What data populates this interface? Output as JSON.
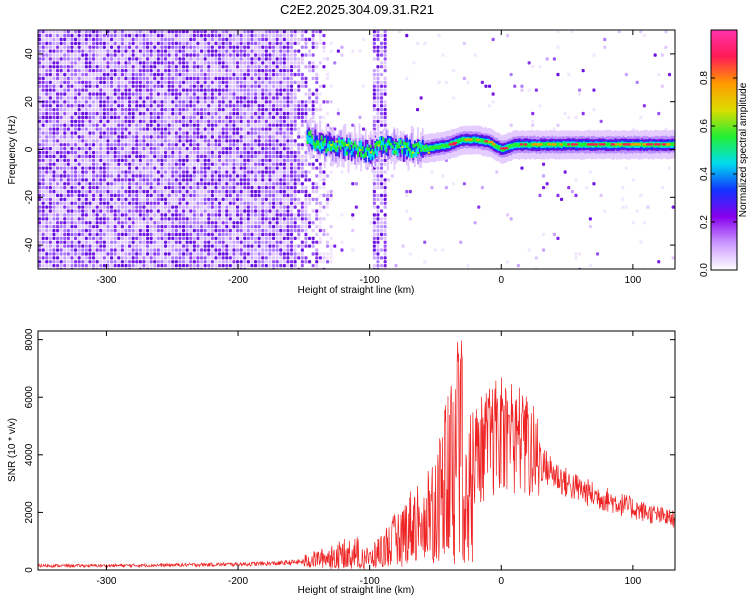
{
  "title": "C2E2.2025.304.09.31.R21",
  "chart_data": [
    {
      "type": "heatmap",
      "title": "",
      "xlabel": "Height of straight line (km)",
      "ylabel": "Frequency (Hz)",
      "xlim": [
        -352,
        132
      ],
      "ylim": [
        -50,
        50
      ],
      "xticks": [
        -300,
        -200,
        -100,
        0,
        100
      ],
      "yticks": [
        -40,
        -20,
        0,
        20,
        40
      ],
      "colorbar": {
        "label": "Normalized spectral amplitude",
        "range": [
          0,
          1
        ],
        "ticks": [
          0.0,
          0.2,
          0.4,
          0.6,
          0.8
        ],
        "tick_labels": [
          "0.0",
          "0.2",
          "0.4",
          "0.6",
          "0.8"
        ],
        "colors": [
          "#ffffff",
          "#cc99ff",
          "#8800ee",
          "#1133ff",
          "#00ddee",
          "#22ee33",
          "#dddd00",
          "#ff9900",
          "#ff1a55",
          "#ff33aa"
        ]
      },
      "noise_region_x": [
        -352,
        -130
      ],
      "gap_x": [
        -128,
        -100
      ],
      "second_noise_band_x": [
        -100,
        -87
      ],
      "ridge": {
        "x": [
          -148,
          -135,
          -120,
          -110,
          -100,
          -90,
          -80,
          -70,
          -60,
          -50,
          -40,
          -30,
          -20,
          -10,
          0,
          10,
          20,
          40,
          60,
          80,
          100,
          132
        ],
        "y": [
          5,
          2,
          1,
          0,
          -1,
          2,
          1,
          0,
          0,
          1,
          2,
          4,
          4,
          3,
          0,
          2,
          2,
          2,
          2,
          2,
          2,
          2
        ]
      }
    },
    {
      "type": "line",
      "title": "",
      "xlabel": "Height of straight line (km)",
      "ylabel": "SNR (10 * v/v)",
      "xlim": [
        -352,
        132
      ],
      "ylim": [
        0,
        8300
      ],
      "xticks": [
        -300,
        -200,
        -100,
        0,
        100
      ],
      "yticks": [
        0,
        2000,
        4000,
        6000,
        8000
      ],
      "color": "#ee2222",
      "envelope": {
        "x": [
          -352,
          -300,
          -250,
          -200,
          -170,
          -150,
          -140,
          -130,
          -120,
          -110,
          -100,
          -90,
          -80,
          -70,
          -60,
          -50,
          -45,
          -40,
          -35,
          -30,
          -25,
          -20,
          -10,
          0,
          5,
          10,
          15,
          20,
          30,
          50,
          70,
          90,
          110,
          132
        ],
        "y": [
          150,
          150,
          170,
          200,
          230,
          290,
          380,
          450,
          580,
          650,
          380,
          750,
          1100,
          1500,
          1900,
          2300,
          2800,
          3500,
          3700,
          3200,
          3600,
          4000,
          4400,
          4700,
          4800,
          4700,
          4500,
          4200,
          3700,
          3000,
          2600,
          2300,
          2000,
          1750
        ]
      },
      "spikes": [
        {
          "x": -43,
          "y": 6000
        },
        {
          "x": -38,
          "y": 6600
        },
        {
          "x": -33,
          "y": 8250
        },
        {
          "x": -31,
          "y": 7400
        },
        {
          "x": -30,
          "y": 8200
        },
        {
          "x": -3,
          "y": 6400
        },
        {
          "x": 1,
          "y": 6000
        },
        {
          "x": 6,
          "y": 5700
        },
        {
          "x": 11,
          "y": 6100
        },
        {
          "x": 16,
          "y": 6200
        },
        {
          "x": 20,
          "y": 5900
        }
      ]
    }
  ]
}
